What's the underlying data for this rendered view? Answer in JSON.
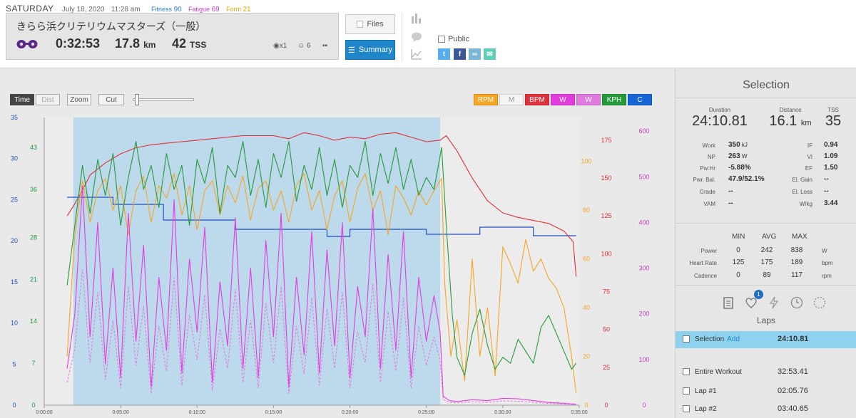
{
  "header": {
    "day": "SATURDAY",
    "date": "July 18, 2020",
    "time": "11:28 am",
    "fitness_label": "Fitness",
    "fitness": "90",
    "fatigue_label": "Fatigue",
    "fatigue": "69",
    "form_label": "Form",
    "form": "21",
    "colors": {
      "fitness": "#2a7fd4",
      "fatigue": "#c43ec4",
      "form": "#e6a000"
    }
  },
  "activity": {
    "title": "きらら浜クリテリウムマスターズ（一般）",
    "duration": "0:32:53",
    "distance": "17.8",
    "distance_unit": "km",
    "tss": "42",
    "tss_unit": "TSS",
    "kudos": "x1",
    "smiles": "6",
    "sport_icon": "cycling-glasses-icon"
  },
  "buttons": {
    "files": "Files",
    "summary": "Summary"
  },
  "share": {
    "public_label": "Public"
  },
  "toolbar": {
    "time": "Time",
    "dist": "Dist",
    "zoom": "Zoom",
    "cut": "Cut",
    "series": [
      {
        "label": "RPM",
        "color": "#f5a623",
        "text": "#ffffff"
      },
      {
        "label": "M",
        "color": "#f4f4f4",
        "text": "#999999"
      },
      {
        "label": "BPM",
        "color": "#e0303a",
        "text": "#ffffff"
      },
      {
        "label": "W",
        "color": "#e43bdf",
        "text": "#ffffff"
      },
      {
        "label": "W",
        "color": "#e07ae0",
        "text": "#ffffff"
      },
      {
        "label": "KPH",
        "color": "#259a3a",
        "text": "#ffffff"
      },
      {
        "label": "C",
        "color": "#1565d8",
        "text": "#ffffff"
      }
    ]
  },
  "chart_data": {
    "type": "line",
    "x_ticks": [
      "0:00:00",
      "0:05:00",
      "0:10:00",
      "0:15:00",
      "0:20:00",
      "0:25:00",
      "0:30:00",
      "0:35:00"
    ],
    "axes": {
      "blue_left": {
        "ticks": [
          "0",
          "5",
          "10",
          "15",
          "20",
          "25",
          "30",
          "35"
        ],
        "color": "#2050c0"
      },
      "green_left": {
        "ticks": [
          "0",
          "7",
          "14",
          "21",
          "28",
          "36",
          "43"
        ],
        "color": "#259a3a"
      },
      "orange_right": {
        "ticks": [
          "0",
          "20",
          "40",
          "60",
          "80",
          "100"
        ],
        "color": "#f5a623"
      },
      "red_right": {
        "ticks": [
          "0",
          "25",
          "50",
          "75",
          "100",
          "125",
          "150",
          "175"
        ],
        "color": "#e0303a"
      },
      "magenta_right": {
        "ticks": [
          "0",
          "100",
          "200",
          "300",
          "400",
          "500",
          "600"
        ],
        "color": "#c43ec4"
      }
    },
    "selection_range_min": [
      1.9,
      25.9
    ],
    "series": [
      {
        "name": "BPM",
        "axis": "red_right",
        "color": "#e0303a",
        "points": [
          [
            1.5,
            125
          ],
          [
            2,
            133
          ],
          [
            2.5,
            142
          ],
          [
            3,
            152
          ],
          [
            4,
            160
          ],
          [
            5,
            166
          ],
          [
            6,
            170
          ],
          [
            7,
            172
          ],
          [
            8,
            173
          ],
          [
            9,
            174
          ],
          [
            10,
            175
          ],
          [
            11,
            176
          ],
          [
            12,
            177
          ],
          [
            13,
            178
          ],
          [
            14,
            178
          ],
          [
            15,
            178
          ],
          [
            16,
            176
          ],
          [
            17,
            180
          ],
          [
            18,
            178
          ],
          [
            19,
            175
          ],
          [
            20,
            177
          ],
          [
            21,
            176
          ],
          [
            22,
            179
          ],
          [
            23,
            180
          ],
          [
            24,
            177
          ],
          [
            25,
            174
          ],
          [
            25.9,
            175
          ],
          [
            26.3,
            178
          ],
          [
            27,
            168
          ],
          [
            28,
            150
          ],
          [
            29,
            135
          ],
          [
            30,
            127
          ],
          [
            31,
            124
          ],
          [
            32,
            122
          ],
          [
            33,
            120
          ],
          [
            34,
            115
          ],
          [
            34.6,
            108
          ],
          [
            34.8,
            85
          ]
        ]
      },
      {
        "name": "Cadence",
        "axis": "orange_right",
        "color": "#f5a623",
        "points": [
          [
            1.5,
            20
          ],
          [
            2,
            70
          ],
          [
            2.5,
            92
          ],
          [
            3,
            75
          ],
          [
            3.5,
            88
          ],
          [
            4,
            93
          ],
          [
            4.5,
            80
          ],
          [
            5,
            90
          ],
          [
            5.5,
            70
          ],
          [
            6,
            88
          ],
          [
            6.5,
            94
          ],
          [
            7,
            75
          ],
          [
            7.5,
            90
          ],
          [
            8,
            85
          ],
          [
            8.5,
            95
          ],
          [
            9,
            78
          ],
          [
            9.5,
            90
          ],
          [
            10,
            72
          ],
          [
            10.5,
            88
          ],
          [
            11,
            92
          ],
          [
            11.5,
            78
          ],
          [
            12,
            90
          ],
          [
            12.5,
            83
          ],
          [
            13,
            94
          ],
          [
            13.5,
            76
          ],
          [
            14,
            89
          ],
          [
            14.5,
            92
          ],
          [
            15,
            80
          ],
          [
            15.5,
            88
          ],
          [
            16,
            75
          ],
          [
            16.5,
            90
          ],
          [
            17,
            95
          ],
          [
            17.5,
            80
          ],
          [
            18,
            88
          ],
          [
            18.5,
            72
          ],
          [
            19,
            86
          ],
          [
            19.5,
            92
          ],
          [
            20,
            75
          ],
          [
            20.5,
            89
          ],
          [
            21,
            95
          ],
          [
            21.5,
            80
          ],
          [
            22,
            88
          ],
          [
            22.5,
            70
          ],
          [
            23,
            90
          ],
          [
            23.5,
            85
          ],
          [
            24,
            78
          ],
          [
            24.5,
            88
          ],
          [
            25,
            82
          ],
          [
            25.5,
            88
          ],
          [
            26,
            93
          ],
          [
            26.2,
            50
          ],
          [
            26.6,
            20
          ],
          [
            27,
            35
          ],
          [
            27.5,
            10
          ],
          [
            28,
            60
          ],
          [
            28.5,
            20
          ],
          [
            29,
            40
          ],
          [
            29.5,
            12
          ],
          [
            30,
            65
          ],
          [
            30.5,
            58
          ],
          [
            31,
            50
          ],
          [
            31.5,
            68
          ],
          [
            32,
            55
          ],
          [
            32.5,
            60
          ],
          [
            33,
            52
          ],
          [
            33.5,
            48
          ],
          [
            34,
            40
          ],
          [
            34.5,
            20
          ],
          [
            34.8,
            5
          ]
        ]
      },
      {
        "name": "Speed",
        "axis": "green_left",
        "color": "#259a3a",
        "points": [
          [
            1.5,
            20
          ],
          [
            2,
            30
          ],
          [
            2.5,
            40
          ],
          [
            3,
            32
          ],
          [
            3.5,
            41
          ],
          [
            4,
            35
          ],
          [
            4.5,
            42
          ],
          [
            5,
            30
          ],
          [
            5.5,
            38
          ],
          [
            6,
            44
          ],
          [
            6.5,
            36
          ],
          [
            7,
            40
          ],
          [
            7.5,
            33
          ],
          [
            8,
            42
          ],
          [
            8.5,
            36
          ],
          [
            9,
            40
          ],
          [
            9.5,
            30
          ],
          [
            10,
            41
          ],
          [
            10.5,
            37
          ],
          [
            11,
            43
          ],
          [
            11.5,
            32
          ],
          [
            12,
            40
          ],
          [
            12.5,
            38
          ],
          [
            13,
            44
          ],
          [
            13.5,
            35
          ],
          [
            14,
            41
          ],
          [
            14.5,
            33
          ],
          [
            15,
            42
          ],
          [
            15.5,
            38
          ],
          [
            16,
            44
          ],
          [
            16.5,
            34
          ],
          [
            17,
            40
          ],
          [
            17.5,
            36
          ],
          [
            18,
            43
          ],
          [
            18.5,
            35
          ],
          [
            19,
            41
          ],
          [
            19.5,
            33
          ],
          [
            20,
            40
          ],
          [
            20.5,
            38
          ],
          [
            21,
            44
          ],
          [
            21.5,
            35
          ],
          [
            22,
            42
          ],
          [
            22.5,
            37
          ],
          [
            23,
            43
          ],
          [
            23.5,
            36
          ],
          [
            24,
            41
          ],
          [
            24.5,
            35
          ],
          [
            25,
            38
          ],
          [
            25.5,
            36
          ],
          [
            26,
            43
          ],
          [
            26.3,
            30
          ],
          [
            26.7,
            15
          ],
          [
            27,
            8
          ],
          [
            27.5,
            5
          ],
          [
            28,
            12
          ],
          [
            28.5,
            16
          ],
          [
            29,
            10
          ],
          [
            29.5,
            6
          ],
          [
            30,
            8
          ],
          [
            30.5,
            7
          ],
          [
            31,
            11
          ],
          [
            31.5,
            9
          ],
          [
            32,
            7
          ],
          [
            32.5,
            13
          ],
          [
            33,
            15
          ],
          [
            33.5,
            12
          ],
          [
            34,
            9
          ],
          [
            34.5,
            6
          ],
          [
            34.8,
            7
          ]
        ]
      },
      {
        "name": "Power",
        "axis": "magenta_right",
        "color": "#e43bdf",
        "points": [
          [
            1.5,
            80
          ],
          [
            2,
            200
          ],
          [
            2.5,
            480
          ],
          [
            3,
            150
          ],
          [
            3.5,
            400
          ],
          [
            4,
            90
          ],
          [
            4.5,
            300
          ],
          [
            5,
            60
          ],
          [
            5.5,
            420
          ],
          [
            6,
            140
          ],
          [
            6.5,
            350
          ],
          [
            7,
            40
          ],
          [
            7.5,
            280
          ],
          [
            8,
            120
          ],
          [
            8.5,
            450
          ],
          [
            9,
            70
          ],
          [
            9.5,
            320
          ],
          [
            10,
            160
          ],
          [
            10.5,
            390
          ],
          [
            11,
            50
          ],
          [
            11.5,
            270
          ],
          [
            12,
            130
          ],
          [
            12.5,
            410
          ],
          [
            13,
            80
          ],
          [
            13.5,
            300
          ],
          [
            14,
            60
          ],
          [
            14.5,
            360
          ],
          [
            15,
            150
          ],
          [
            15.5,
            420
          ],
          [
            16,
            40
          ],
          [
            16.5,
            280
          ],
          [
            17,
            110
          ],
          [
            17.5,
            380
          ],
          [
            18,
            70
          ],
          [
            18.5,
            340
          ],
          [
            19,
            130
          ],
          [
            19.5,
            400
          ],
          [
            20,
            60
          ],
          [
            20.5,
            260
          ],
          [
            21,
            150
          ],
          [
            21.5,
            430
          ],
          [
            22,
            80
          ],
          [
            22.5,
            330
          ],
          [
            23,
            120
          ],
          [
            23.5,
            380
          ],
          [
            24,
            60
          ],
          [
            24.5,
            280
          ],
          [
            25,
            140
          ],
          [
            25.5,
            240
          ],
          [
            25.9,
            160
          ],
          [
            26.1,
            20
          ],
          [
            26.5,
            10
          ],
          [
            27,
            8
          ],
          [
            28,
            12
          ],
          [
            29,
            10
          ],
          [
            30,
            15
          ],
          [
            31,
            14
          ],
          [
            32,
            10
          ],
          [
            33,
            6
          ],
          [
            34,
            4
          ],
          [
            34.8,
            2
          ]
        ]
      }
    ]
  },
  "sidebar": {
    "title": "Selection",
    "duration_label": "Duration",
    "duration": "24:10.81",
    "distance_label": "Distance",
    "distance": "16.1",
    "distance_unit": "km",
    "tss_label": "TSS",
    "tss": "35",
    "metrics_left": [
      {
        "label": "Work",
        "value": "350",
        "unit": "kJ"
      },
      {
        "label": "NP",
        "value": "263",
        "unit": "W"
      },
      {
        "label": "Pw:Hr",
        "value": "-5.88%",
        "unit": ""
      },
      {
        "label": "Pwr. Bal.",
        "value": "47.9/52.1%",
        "unit": ""
      },
      {
        "label": "Grade",
        "value": "--",
        "unit": ""
      },
      {
        "label": "VAM",
        "value": "--",
        "unit": ""
      }
    ],
    "metrics_right": [
      {
        "label": "IF",
        "value": "0.94"
      },
      {
        "label": "VI",
        "value": "1.09"
      },
      {
        "label": "EF",
        "value": "1.50"
      },
      {
        "label": "El. Gain",
        "value": "--"
      },
      {
        "label": "El. Loss",
        "value": "--"
      },
      {
        "label": "W/kg",
        "value": "3.44"
      }
    ],
    "table_headers": [
      "MIN",
      "AVG",
      "MAX"
    ],
    "table_rows": [
      {
        "label": "Power",
        "min": "0",
        "avg": "242",
        "max": "838",
        "unit": "W"
      },
      {
        "label": "Heart Rate",
        "min": "125",
        "avg": "175",
        "max": "189",
        "unit": "bpm"
      },
      {
        "label": "Cadence",
        "min": "0",
        "avg": "89",
        "max": "117",
        "unit": "rpm"
      }
    ],
    "badge": "1",
    "laps_title": "Laps",
    "laps": [
      {
        "name": "Selection",
        "add": "Add",
        "time": "24:10.81",
        "active": true
      },
      {
        "name": "Entire Workout",
        "add": "",
        "time": "32:53.41",
        "active": false
      },
      {
        "name": "Lap #1",
        "add": "",
        "time": "02:05.76",
        "active": false
      },
      {
        "name": "Lap #2",
        "add": "",
        "time": "03:40.65",
        "active": false
      }
    ]
  }
}
